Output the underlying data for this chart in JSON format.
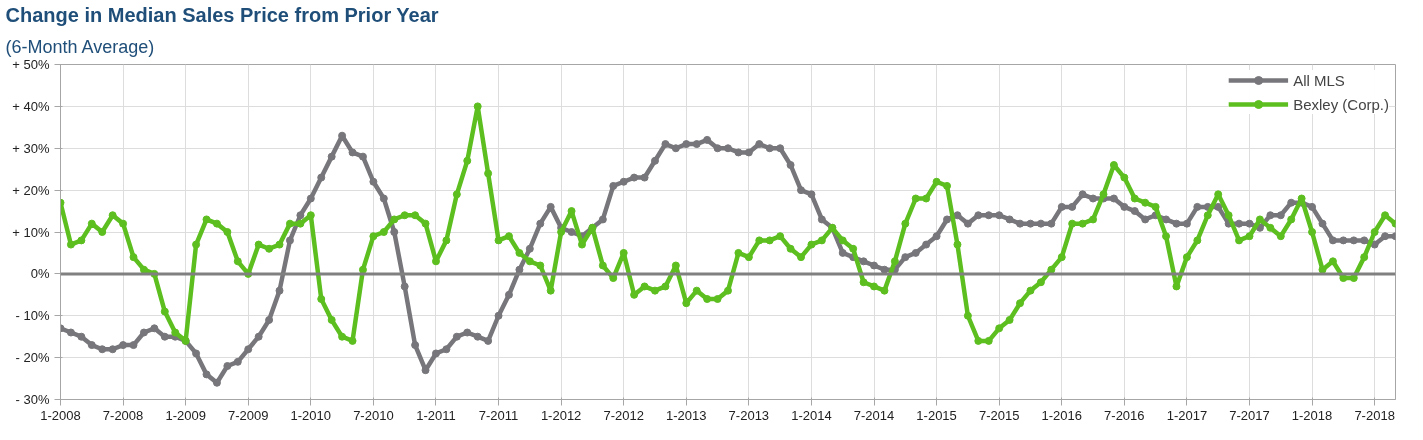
{
  "chart_data": {
    "type": "line",
    "title": "Change in Median Sales Price from Prior Year",
    "subtitle": "(6-Month Average)",
    "x": [
      "2008-01",
      "2008-02",
      "2008-03",
      "2008-04",
      "2008-05",
      "2008-06",
      "2008-07",
      "2008-08",
      "2008-09",
      "2008-10",
      "2008-11",
      "2008-12",
      "2009-01",
      "2009-02",
      "2009-03",
      "2009-04",
      "2009-05",
      "2009-06",
      "2009-07",
      "2009-08",
      "2009-09",
      "2009-10",
      "2009-11",
      "2009-12",
      "2010-01",
      "2010-02",
      "2010-03",
      "2010-04",
      "2010-05",
      "2010-06",
      "2010-07",
      "2010-08",
      "2010-09",
      "2010-10",
      "2010-11",
      "2010-12",
      "2011-01",
      "2011-02",
      "2011-03",
      "2011-04",
      "2011-05",
      "2011-06",
      "2011-07",
      "2011-08",
      "2011-09",
      "2011-10",
      "2011-11",
      "2011-12",
      "2012-01",
      "2012-02",
      "2012-03",
      "2012-04",
      "2012-05",
      "2012-06",
      "2012-07",
      "2012-08",
      "2012-09",
      "2012-10",
      "2012-11",
      "2012-12",
      "2013-01",
      "2013-02",
      "2013-03",
      "2013-04",
      "2013-05",
      "2013-06",
      "2013-07",
      "2013-08",
      "2013-09",
      "2013-10",
      "2013-11",
      "2013-12",
      "2014-01",
      "2014-02",
      "2014-03",
      "2014-04",
      "2014-05",
      "2014-06",
      "2014-07",
      "2014-08",
      "2014-09",
      "2014-10",
      "2014-11",
      "2014-12",
      "2015-01",
      "2015-02",
      "2015-03",
      "2015-04",
      "2015-05",
      "2015-06",
      "2015-07",
      "2015-08",
      "2015-09",
      "2015-10",
      "2015-11",
      "2015-12",
      "2016-01",
      "2016-02",
      "2016-03",
      "2016-04",
      "2016-05",
      "2016-06",
      "2016-07",
      "2016-08",
      "2016-09",
      "2016-10",
      "2016-11",
      "2016-12",
      "2017-01",
      "2017-02",
      "2017-03",
      "2017-04",
      "2017-05",
      "2017-06",
      "2017-07",
      "2017-08",
      "2017-09",
      "2017-10",
      "2017-11",
      "2017-12",
      "2018-01",
      "2018-02",
      "2018-03",
      "2018-04",
      "2018-05",
      "2018-06",
      "2018-07",
      "2018-08",
      "2018-09"
    ],
    "series": [
      {
        "name": "All MLS",
        "color": "#77767b",
        "values": [
          -13,
          -14,
          -15,
          -17,
          -18,
          -18,
          -17,
          -17,
          -14,
          -13,
          -15,
          -15,
          -16,
          -19,
          -24,
          -26,
          -22,
          -21,
          -18,
          -15,
          -11,
          -4,
          8,
          14,
          18,
          23,
          28,
          33,
          29,
          28,
          22,
          18,
          10,
          -3,
          -17,
          -23,
          -19,
          -18,
          -15,
          -14,
          -15,
          -16,
          -10,
          -5,
          1,
          6,
          12,
          16,
          11,
          10,
          9,
          11,
          13,
          21,
          22,
          23,
          23,
          27,
          31,
          30,
          31,
          31,
          32,
          30,
          30,
          29,
          29,
          31,
          30,
          30,
          26,
          20,
          19,
          13,
          11,
          5,
          4,
          3,
          2,
          1,
          1,
          4,
          5,
          7,
          9,
          13,
          14,
          12,
          14,
          14,
          14,
          13,
          12,
          12,
          12,
          12,
          16,
          16,
          19,
          18,
          18,
          18,
          16,
          15,
          13,
          14,
          13,
          12,
          12,
          16,
          16,
          16,
          12,
          12,
          12,
          11,
          14,
          14,
          17,
          17,
          16,
          12,
          8,
          8,
          8,
          8,
          7,
          9,
          9
        ]
      },
      {
        "name": "Bexley (Corp.)",
        "color": "#5cbf1f",
        "values": [
          17,
          7,
          8,
          12,
          10,
          14,
          12,
          4,
          1,
          0,
          -9,
          -14,
          -16,
          7,
          13,
          12,
          10,
          3,
          0,
          7,
          6,
          7,
          12,
          12,
          14,
          -6,
          -11,
          -15,
          -16,
          1,
          9,
          10,
          13,
          14,
          14,
          12,
          3,
          8,
          19,
          27,
          40,
          24,
          8,
          9,
          5,
          3,
          2,
          -4,
          10,
          15,
          7,
          11,
          2,
          -1,
          5,
          -5,
          -3,
          -4,
          -3,
          2,
          -7,
          -4,
          -6,
          -6,
          -4,
          5,
          4,
          8,
          8,
          9,
          6,
          4,
          7,
          8,
          11,
          8,
          6,
          -2,
          -3,
          -4,
          3,
          12,
          18,
          18,
          22,
          21,
          7,
          -10,
          -16,
          -16,
          -13,
          -11,
          -7,
          -4,
          -2,
          1,
          4,
          12,
          12,
          13,
          19,
          26,
          23,
          18,
          17,
          16,
          9,
          -3,
          4,
          8,
          14,
          19,
          14,
          8,
          9,
          13,
          11,
          9,
          13,
          18,
          10,
          1,
          3,
          -1,
          -1,
          4,
          10,
          14,
          12
        ]
      }
    ],
    "xlim": [
      "2008-01",
      "2018-09"
    ],
    "xticks": [
      {
        "value": "2008-01",
        "label": "1-2008"
      },
      {
        "value": "2008-07",
        "label": "7-2008"
      },
      {
        "value": "2009-01",
        "label": "1-2009"
      },
      {
        "value": "2009-07",
        "label": "7-2009"
      },
      {
        "value": "2010-01",
        "label": "1-2010"
      },
      {
        "value": "2010-07",
        "label": "7-2010"
      },
      {
        "value": "2011-01",
        "label": "1-2011"
      },
      {
        "value": "2011-07",
        "label": "7-2011"
      },
      {
        "value": "2012-01",
        "label": "1-2012"
      },
      {
        "value": "2012-07",
        "label": "7-2012"
      },
      {
        "value": "2013-01",
        "label": "1-2013"
      },
      {
        "value": "2013-07",
        "label": "7-2013"
      },
      {
        "value": "2014-01",
        "label": "1-2014"
      },
      {
        "value": "2014-07",
        "label": "7-2014"
      },
      {
        "value": "2015-01",
        "label": "1-2015"
      },
      {
        "value": "2015-07",
        "label": "7-2015"
      },
      {
        "value": "2016-01",
        "label": "1-2016"
      },
      {
        "value": "2016-07",
        "label": "7-2016"
      },
      {
        "value": "2017-01",
        "label": "1-2017"
      },
      {
        "value": "2017-07",
        "label": "7-2017"
      },
      {
        "value": "2018-01",
        "label": "1-2018"
      },
      {
        "value": "2018-07",
        "label": "7-2018"
      }
    ],
    "ylim": [
      -30,
      50
    ],
    "yticks": [
      {
        "value": -30,
        "label": "- 30%"
      },
      {
        "value": -20,
        "label": "- 20%"
      },
      {
        "value": -10,
        "label": "- 10%"
      },
      {
        "value": 0,
        "label": "0%"
      },
      {
        "value": 10,
        "label": "+ 10%"
      },
      {
        "value": 20,
        "label": "+ 20%"
      },
      {
        "value": 30,
        "label": "+ 30%"
      },
      {
        "value": 40,
        "label": "+ 40%"
      },
      {
        "value": 50,
        "label": "+ 50%"
      }
    ],
    "ref_lines": [
      {
        "axis": "y",
        "value": 0,
        "color": "#808080"
      }
    ],
    "grid": true,
    "legend": "top right",
    "marker": "circle",
    "line_style": "solid"
  }
}
